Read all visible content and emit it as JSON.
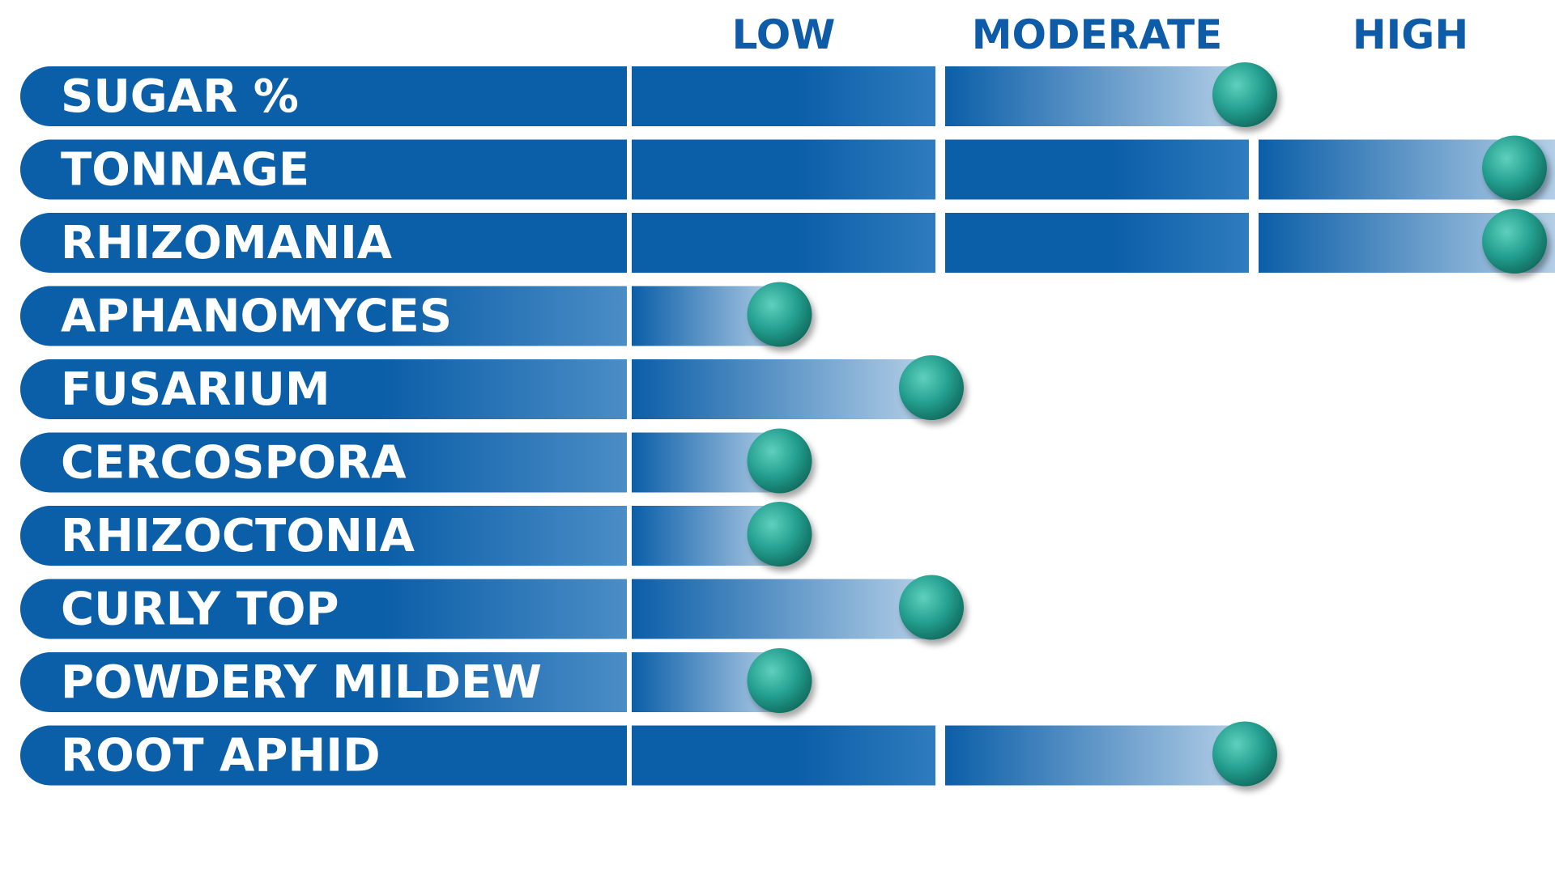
{
  "chart_data": {
    "type": "bar",
    "scale_labels": [
      "LOW",
      "MODERATE",
      "HIGH"
    ],
    "max_level": 3,
    "categories": [
      "SUGAR %",
      "TONNAGE",
      "RHIZOMANIA",
      "APHANOMYCES",
      "FUSARIUM",
      "CERCOSPORA",
      "RHIZOCTONIA",
      "CURLY TOP",
      "POWDERY MILDEW",
      "ROOT APHID"
    ],
    "values": [
      2.0,
      3.0,
      3.0,
      0.5,
      1.0,
      0.5,
      0.5,
      1.0,
      0.5,
      2.0
    ],
    "colors": {
      "bar": "#0B5EA8",
      "label": "#0E5CA8",
      "marker": "#25A090",
      "text": "#FFFFFF"
    }
  }
}
